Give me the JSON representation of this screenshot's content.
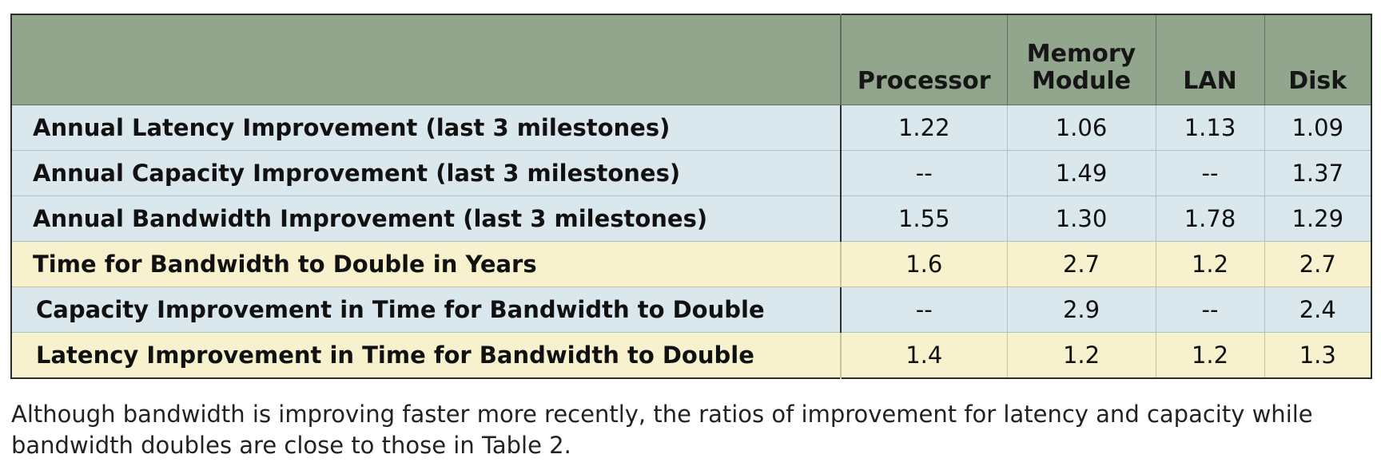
{
  "table": {
    "columns": [
      "",
      "Processor",
      "Memory Module",
      "LAN",
      "Disk"
    ],
    "rows": [
      {
        "label": "Annual Latency Improvement  (last 3 milestones)",
        "values": [
          "1.22",
          "1.06",
          "1.13",
          "1.09"
        ],
        "highlight": "blue"
      },
      {
        "label": "Annual Capacity Improvement  (last 3 milestones)",
        "values": [
          "--",
          "1.49",
          "--",
          "1.37"
        ],
        "highlight": "blue"
      },
      {
        "label": "Annual Bandwidth Improvement (last 3 milestones)",
        "values": [
          "1.55",
          "1.30",
          "1.78",
          "1.29"
        ],
        "highlight": "blue"
      },
      {
        "label": "Time for Bandwidth to Double in Years",
        "values": [
          "1.6",
          "2.7",
          "1.2",
          "2.7"
        ],
        "highlight": "yellow"
      },
      {
        "label": "Capacity Improvement in Time for Bandwidth to Double",
        "values": [
          "--",
          "2.9",
          "--",
          "2.4"
        ],
        "highlight": "blue"
      },
      {
        "label": "Latency Improvement in Time for Bandwidth to Double",
        "values": [
          "1.4",
          "1.2",
          "1.2",
          "1.3"
        ],
        "highlight": "yellow"
      }
    ]
  },
  "caption": "Although bandwidth is improving faster more recently, the ratios of improvement for latency and capacity while bandwidth doubles are close to those in Table 2.",
  "colors": {
    "header_bg": "#92a68e",
    "row_blue": "#dae8ed",
    "row_yellow": "#f7f2cd"
  }
}
